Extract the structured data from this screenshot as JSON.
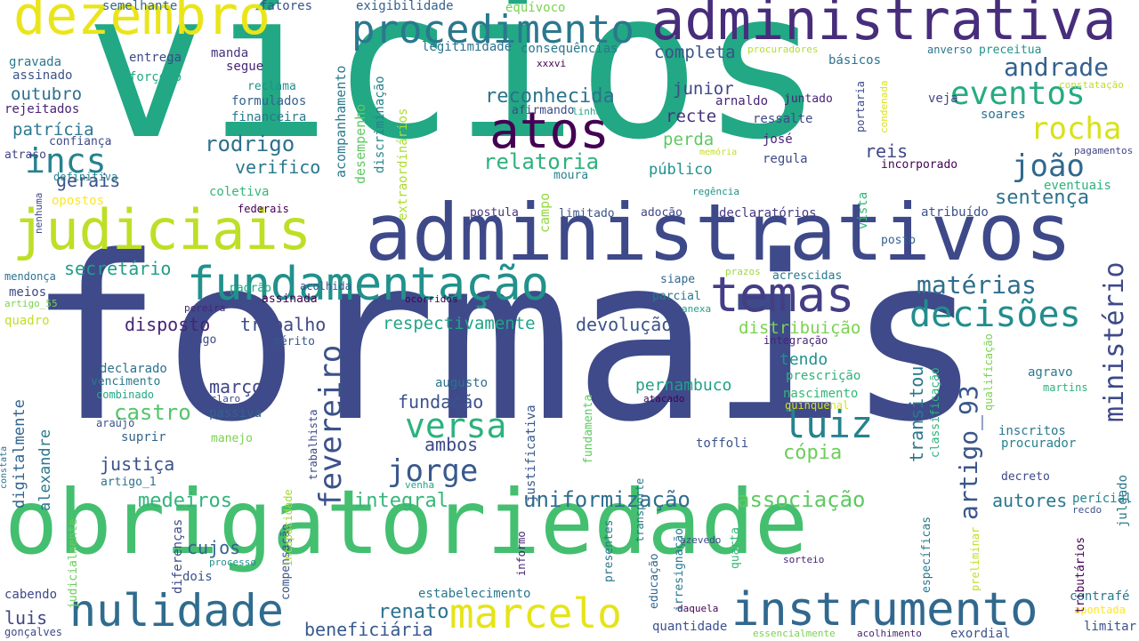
{
  "words": [
    {
      "text": "vícios",
      "color": "#22a884"
    },
    {
      "text": "formais",
      "color": "#3e4a89"
    },
    {
      "text": "obrigatoriedade",
      "color": "#44bf70"
    },
    {
      "text": "administrativos",
      "color": "#3e4989"
    },
    {
      "text": "administrativa",
      "color": "#472d7b"
    },
    {
      "text": "judiciais",
      "color": "#bddf26"
    },
    {
      "text": "dezembro",
      "color": "#eae51a"
    },
    {
      "text": "fundamentação",
      "color": "#21918c"
    },
    {
      "text": "procedimento",
      "color": "#2a788e"
    },
    {
      "text": "nulidade",
      "color": "#2f6c8e"
    },
    {
      "text": "instrumento",
      "color": "#31688e"
    },
    {
      "text": "marcelo",
      "color": "#e5e419"
    },
    {
      "text": "temas",
      "color": "#433e85"
    },
    {
      "text": "atos",
      "color": "#440154"
    },
    {
      "text": "decisões",
      "color": "#228d8d"
    },
    {
      "text": "eventos",
      "color": "#25ab82"
    },
    {
      "text": "rocha",
      "color": "#d8e219"
    },
    {
      "text": "andrade",
      "color": "#34618d"
    },
    {
      "text": "incs",
      "color": "#26828e"
    },
    {
      "text": "joão",
      "color": "#31688e"
    },
    {
      "text": "luiz",
      "color": "#25838e"
    },
    {
      "text": "versa",
      "color": "#2db27d"
    },
    {
      "text": "jorge",
      "color": "#38598c"
    },
    {
      "text": "matérias",
      "color": "#2e6e8e"
    },
    {
      "text": "artigo_93",
      "color": "#39568c"
    },
    {
      "text": "ministério",
      "color": "#3e4989"
    },
    {
      "text": "fevereiro",
      "color": "#3b528b"
    },
    {
      "text": "relatoria",
      "color": "#2db27d"
    },
    {
      "text": "reconhecida",
      "color": "#2c728e"
    },
    {
      "text": "rodrigo",
      "color": "#2d708e"
    },
    {
      "text": "verifico",
      "color": "#2a788e"
    },
    {
      "text": "gerais",
      "color": "#3b528b"
    },
    {
      "text": "medeiros",
      "color": "#31b57b"
    },
    {
      "text": "associação",
      "color": "#5ec962"
    },
    {
      "text": "uniformização",
      "color": "#2e6e8e"
    },
    {
      "text": "integral",
      "color": "#35b779"
    },
    {
      "text": "autores",
      "color": "#2a788e"
    },
    {
      "text": "sentença",
      "color": "#2c728e"
    },
    {
      "text": "disposto",
      "color": "#482475"
    },
    {
      "text": "trabalho",
      "color": "#3e4a89"
    },
    {
      "text": "respectivamente",
      "color": "#20a486"
    },
    {
      "text": "devolução",
      "color": "#3b528b"
    },
    {
      "text": "distribuição",
      "color": "#7ad151"
    },
    {
      "text": "secretário",
      "color": "#1f9e89"
    },
    {
      "text": "castro",
      "color": "#52c569"
    },
    {
      "text": "março",
      "color": "#404688"
    },
    {
      "text": "fundação",
      "color": "#3b528b"
    },
    {
      "text": "ambos",
      "color": "#3e4989"
    },
    {
      "text": "justiça",
      "color": "#3b528b"
    },
    {
      "text": "cópia",
      "color": "#6ccd5a"
    },
    {
      "text": "renato",
      "color": "#2c728e"
    },
    {
      "text": "beneficiária",
      "color": "#38598c"
    },
    {
      "text": "cujos",
      "color": "#33638d"
    },
    {
      "text": "luis",
      "color": "#404688"
    },
    {
      "text": "completa",
      "color": "#3b528b"
    },
    {
      "text": "junior",
      "color": "#404688"
    },
    {
      "text": "recte",
      "color": "#46327e"
    },
    {
      "text": "perda",
      "color": "#5ec962"
    },
    {
      "text": "público",
      "color": "#21918c"
    },
    {
      "text": "patrícia",
      "color": "#2a788e"
    },
    {
      "text": "outubro",
      "color": "#2e6e8e"
    },
    {
      "text": "tendo",
      "color": "#21918c"
    },
    {
      "text": "pernambuco",
      "color": "#1fa187"
    },
    {
      "text": "reis",
      "color": "#404688"
    },
    {
      "text": "transitou",
      "color": "#2a788e"
    },
    {
      "text": "exigibilidade",
      "color": "#34618d"
    },
    {
      "text": "consequências",
      "color": "#2a788e"
    },
    {
      "text": "legitimidade",
      "color": "#2c728e"
    },
    {
      "text": "básicos",
      "color": "#2c728e"
    },
    {
      "text": "semelhante",
      "color": "#31688e"
    },
    {
      "text": "fatores",
      "color": "#3b528b"
    },
    {
      "text": "equívoco",
      "color": "#7ad151"
    },
    {
      "text": "entrega",
      "color": "#3e4989"
    },
    {
      "text": "manda",
      "color": "#46327e"
    },
    {
      "text": "segue",
      "color": "#482475"
    },
    {
      "text": "gravada",
      "color": "#2a788e"
    },
    {
      "text": "assinado",
      "color": "#3b528b"
    },
    {
      "text": "forçoso",
      "color": "#22a884"
    },
    {
      "text": "rejeitados",
      "color": "#482475"
    },
    {
      "text": "confiança",
      "color": "#3e4a89"
    },
    {
      "text": "reclama",
      "color": "#21918c"
    },
    {
      "text": "formulados",
      "color": "#33638d"
    },
    {
      "text": "financeira",
      "color": "#2a788e"
    },
    {
      "text": "atraso",
      "color": "#414487"
    },
    {
      "text": "definitiva",
      "color": "#26828e"
    },
    {
      "text": "coletiva",
      "color": "#35b779"
    },
    {
      "text": "opostos",
      "color": "#fde725"
    },
    {
      "text": "federais",
      "color": "#440154"
    },
    {
      "text": "afirmando",
      "color": "#3e4a89"
    },
    {
      "text": "arnaldo",
      "color": "#482475"
    },
    {
      "text": "ressalte",
      "color": "#3e4989"
    },
    {
      "text": "josé",
      "color": "#482475"
    },
    {
      "text": "regula",
      "color": "#3e4a89"
    },
    {
      "text": "juntado",
      "color": "#482475"
    },
    {
      "text": "veja",
      "color": "#404688"
    },
    {
      "text": "soares",
      "color": "#2c728e"
    },
    {
      "text": "incorporado",
      "color": "#440154"
    },
    {
      "text": "eventuais",
      "color": "#2db27d"
    },
    {
      "text": "regência",
      "color": "#21918c"
    },
    {
      "text": "moura",
      "color": "#26828e"
    },
    {
      "text": "postula",
      "color": "#46327e"
    },
    {
      "text": "limitado",
      "color": "#3b528b"
    },
    {
      "text": "adoção",
      "color": "#3e4989"
    },
    {
      "text": "declaratórios",
      "color": "#443983"
    },
    {
      "text": "atribuído",
      "color": "#3b528b"
    },
    {
      "text": "posto",
      "color": "#34618d"
    },
    {
      "text": "acrescidas",
      "color": "#2a788e"
    },
    {
      "text": "prazos",
      "color": "#a0da39"
    },
    {
      "text": "siape",
      "color": "#31688e"
    },
    {
      "text": "parcial",
      "color": "#2a788e"
    },
    {
      "text": "anexa",
      "color": "#20a486"
    },
    {
      "text": "padrão",
      "color": "#22a884"
    },
    {
      "text": "assinada",
      "color": "#440154"
    },
    {
      "text": "acolhida",
      "color": "#3b528b"
    },
    {
      "text": "ocorridos",
      "color": "#440154"
    },
    {
      "text": "mendonça",
      "color": "#2c728e"
    },
    {
      "text": "meios",
      "color": "#3e4989"
    },
    {
      "text": "artigo_55",
      "color": "#7ad151"
    },
    {
      "text": "quadro",
      "color": "#c2df23"
    },
    {
      "text": "pereira",
      "color": "#482475"
    },
    {
      "text": "pago",
      "color": "#3e4989"
    },
    {
      "text": "mérito",
      "color": "#38598c"
    },
    {
      "text": "integração",
      "color": "#482475"
    },
    {
      "text": "prescrição",
      "color": "#2db27d"
    },
    {
      "text": "nascimento",
      "color": "#35b779"
    },
    {
      "text": "agravo",
      "color": "#2a788e"
    },
    {
      "text": "martins",
      "color": "#2db27d"
    },
    {
      "text": "declarado",
      "color": "#2c728e"
    },
    {
      "text": "vencimento",
      "color": "#2a788e"
    },
    {
      "text": "combinado",
      "color": "#22a884"
    },
    {
      "text": "claro",
      "color": "#3e4989"
    },
    {
      "text": "passiva",
      "color": "#33638d"
    },
    {
      "text": "augusto",
      "color": "#2c728e"
    },
    {
      "text": "atacado",
      "color": "#440154"
    },
    {
      "text": "quinquenal",
      "color": "#d8e219"
    },
    {
      "text": "araújo",
      "color": "#3b528b"
    },
    {
      "text": "suprir",
      "color": "#33638d"
    },
    {
      "text": "manejo",
      "color": "#7ad151"
    },
    {
      "text": "toffoli",
      "color": "#3b528b"
    },
    {
      "text": "inscritos",
      "color": "#2a788e"
    },
    {
      "text": "procurador",
      "color": "#26828e"
    },
    {
      "text": "decreto",
      "color": "#3e4989"
    },
    {
      "text": "artigo_1",
      "color": "#2c728e"
    },
    {
      "text": "venha",
      "color": "#22a884"
    },
    {
      "text": "perícial",
      "color": "#26828e"
    },
    {
      "text": "recdo",
      "color": "#3b528b"
    },
    {
      "text": "azevedo",
      "color": "#3e4989"
    },
    {
      "text": "processo",
      "color": "#21918c"
    },
    {
      "text": "sorteio",
      "color": "#482475"
    },
    {
      "text": "dois",
      "color": "#3b528b"
    },
    {
      "text": "cabendo",
      "color": "#3e4989"
    },
    {
      "text": "estabelecimento",
      "color": "#2a788e"
    },
    {
      "text": "contrafé",
      "color": "#2a788e"
    },
    {
      "text": "apontada",
      "color": "#fde725"
    },
    {
      "text": "quantidade",
      "color": "#3b528b"
    },
    {
      "text": "daquela",
      "color": "#440154"
    },
    {
      "text": "essencialmente",
      "color": "#7ad151"
    },
    {
      "text": "acolhimento",
      "color": "#482475"
    },
    {
      "text": "exordial",
      "color": "#3b528b"
    },
    {
      "text": "limitar",
      "color": "#3b528b"
    },
    {
      "text": "gonçalves",
      "color": "#3e4989"
    },
    {
      "text": "procuradores",
      "color": "#b5de2b"
    },
    {
      "text": "anverso",
      "color": "#2c728e"
    },
    {
      "text": "preceitua",
      "color": "#21918c"
    },
    {
      "text": "constatação",
      "color": "#bddf26"
    },
    {
      "text": "pagamentos",
      "color": "#414487"
    },
    {
      "text": "linhas",
      "color": "#22a884"
    },
    {
      "text": "memória",
      "color": "#c2df23"
    },
    {
      "text": "xxxvi",
      "color": "#440154"
    },
    {
      "text": "acompanhamento",
      "color": "#2a788e",
      "vertical": true
    },
    {
      "text": "desempenho",
      "color": "#5ec962",
      "vertical": true
    },
    {
      "text": "discriminação",
      "color": "#26828e",
      "vertical": true
    },
    {
      "text": "extraordinários",
      "color": "#addc30",
      "vertical": true
    },
    {
      "text": "campo",
      "color": "#95d840",
      "vertical": true
    },
    {
      "text": "vista",
      "color": "#35b779",
      "vertical": true
    },
    {
      "text": "portaria",
      "color": "#3e4989",
      "vertical": true
    },
    {
      "text": "condenada",
      "color": "#d8e219",
      "vertical": true
    },
    {
      "text": "nenhuma",
      "color": "#3e4989",
      "vertical": true
    },
    {
      "text": "digitalmente",
      "color": "#33638d",
      "vertical": true
    },
    {
      "text": "alexandre",
      "color": "#2a788e",
      "vertical": true
    },
    {
      "text": "constata",
      "color": "#2c728e",
      "vertical": true
    },
    {
      "text": "judicialmente",
      "color": "#6ccd5a",
      "vertical": true
    },
    {
      "text": "diferenças",
      "color": "#3e4989",
      "vertical": true
    },
    {
      "text": "compensação",
      "color": "#3b528b",
      "vertical": true
    },
    {
      "text": "incapacidade",
      "color": "#a0da39",
      "vertical": true
    },
    {
      "text": "trabalhista",
      "color": "#3e4989",
      "vertical": true
    },
    {
      "text": "justificativa",
      "color": "#38598c",
      "vertical": true
    },
    {
      "text": "fundamenta",
      "color": "#5ec962",
      "vertical": true
    },
    {
      "text": "informo",
      "color": "#482475",
      "vertical": true
    },
    {
      "text": "presentes",
      "color": "#2a788e",
      "vertical": true
    },
    {
      "text": "transporte",
      "color": "#2a788e",
      "vertical": true
    },
    {
      "text": "educação",
      "color": "#31688e",
      "vertical": true
    },
    {
      "text": "irresignação",
      "color": "#2a788e",
      "vertical": true
    },
    {
      "text": "quarta",
      "color": "#35b779",
      "vertical": true
    },
    {
      "text": "específicas",
      "color": "#2a788e",
      "vertical": true
    },
    {
      "text": "preliminar",
      "color": "#c2df23",
      "vertical": true
    },
    {
      "text": "tributários",
      "color": "#440154",
      "vertical": true
    },
    {
      "text": "julgado",
      "color": "#2a788e",
      "vertical": true
    },
    {
      "text": "classificação",
      "color": "#2db27d",
      "vertical": true
    },
    {
      "text": "qualificação",
      "color": "#7ad151",
      "vertical": true
    }
  ]
}
